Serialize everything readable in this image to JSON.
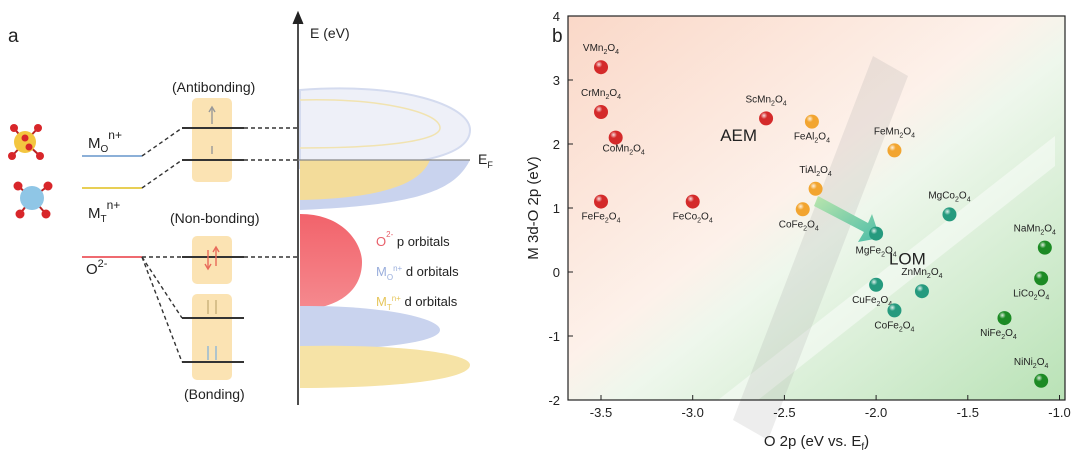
{
  "panel_a": {
    "label": "a",
    "y_axis_label": "E (eV)",
    "fermi_label": "E",
    "fermi_sub": "F",
    "antibonding": "(Antibonding)",
    "nonbonding": "(Non-bonding)",
    "bonding": "(Bonding)",
    "mo": {
      "base": "M",
      "sub": "O",
      "sup": "n+"
    },
    "mt": {
      "base": "M",
      "sub": "T",
      "sup": "n+"
    },
    "o2": {
      "base": "O",
      "sup": "2-"
    },
    "legend": [
      {
        "pre": "O",
        "sup": "2-",
        "post": " p orbitals",
        "color": "#e8606a"
      },
      {
        "pre": "M",
        "sub": "O",
        "sup": "n+",
        "post": " d orbitals",
        "color": "#9aaedc"
      },
      {
        "pre": "M",
        "sub": "T",
        "sup": "n+",
        "post": " d orbitals",
        "color": "#e6c65c"
      }
    ],
    "colors": {
      "o2p": "#f2636b",
      "mo_d": "#c5cfea",
      "mt_d": "#f3dc9a",
      "box": "#fbe3b3"
    }
  },
  "panel_b": {
    "label": "b"
  },
  "chart_data": {
    "type": "scatter",
    "xlabel": "O 2p (eV vs. E_f)",
    "xlabel_main": "O 2p (eV vs. E",
    "xlabel_sub": "f",
    "xlabel_end": ")",
    "ylabel": "M 3d-O 2p (eV)",
    "xlim": [
      -3.68,
      -0.97
    ],
    "ylim": [
      -2,
      4
    ],
    "xticks": [
      -3.5,
      -3.0,
      -2.5,
      -2.0,
      -1.5,
      -1.0
    ],
    "xtick_labels": [
      "-3.5",
      "-3.0",
      "-2.5",
      "-2.0",
      "-1.5",
      "-1.0"
    ],
    "yticks": [
      -2,
      -1,
      0,
      1,
      2,
      3,
      4
    ],
    "ytick_labels": [
      "-2",
      "-1",
      "0",
      "1",
      "2",
      "3",
      "4"
    ],
    "region_labels": [
      "AEM",
      "LOM"
    ],
    "colors": {
      "red": "#d42a2a",
      "orange": "#f2a530",
      "teal": "#259a7e",
      "green": "#1c8a24"
    },
    "points": [
      {
        "name": "VMn2O4",
        "x": -3.5,
        "y": 3.2,
        "color": "red"
      },
      {
        "name": "CrMn2O4",
        "x": -3.5,
        "y": 2.5,
        "color": "red"
      },
      {
        "name": "CoMn2O4",
        "x": -3.42,
        "y": 2.1,
        "color": "red"
      },
      {
        "name": "FeFe2O4",
        "x": -3.5,
        "y": 1.1,
        "color": "red"
      },
      {
        "name": "FeCo2O4",
        "x": -3.0,
        "y": 1.1,
        "color": "red"
      },
      {
        "name": "ScMn2O4",
        "x": -2.6,
        "y": 2.4,
        "color": "red"
      },
      {
        "name": "FeAl2O4",
        "x": -2.35,
        "y": 2.35,
        "color": "orange"
      },
      {
        "name": "FeMn2O4",
        "x": -1.9,
        "y": 1.9,
        "color": "orange"
      },
      {
        "name": "TiAl2O4",
        "x": -2.33,
        "y": 1.3,
        "color": "orange"
      },
      {
        "name": "CoFe2O4",
        "x": -2.4,
        "y": 0.98,
        "color": "orange"
      },
      {
        "name": "MgCo2O4",
        "x": -1.6,
        "y": 0.9,
        "color": "teal"
      },
      {
        "name": "MgFe2O4",
        "x": -2.0,
        "y": 0.6,
        "color": "teal"
      },
      {
        "name": "ZnMn2O4",
        "x": -1.75,
        "y": -0.3,
        "color": "teal"
      },
      {
        "name": "CuFe2O4",
        "x": -2.0,
        "y": -0.2,
        "color": "teal"
      },
      {
        "name": "CoFe2O4",
        "x": -1.9,
        "y": -0.6,
        "color": "teal"
      },
      {
        "name": "NaMn2O4",
        "x": -1.08,
        "y": 0.38,
        "color": "green"
      },
      {
        "name": "LiCo2O4",
        "x": -1.1,
        "y": -0.1,
        "color": "green"
      },
      {
        "name": "NiFe2O4",
        "x": -1.3,
        "y": -0.72,
        "color": "green"
      },
      {
        "name": "NiNi2O4",
        "x": -1.1,
        "y": -1.7,
        "color": "green"
      }
    ]
  }
}
